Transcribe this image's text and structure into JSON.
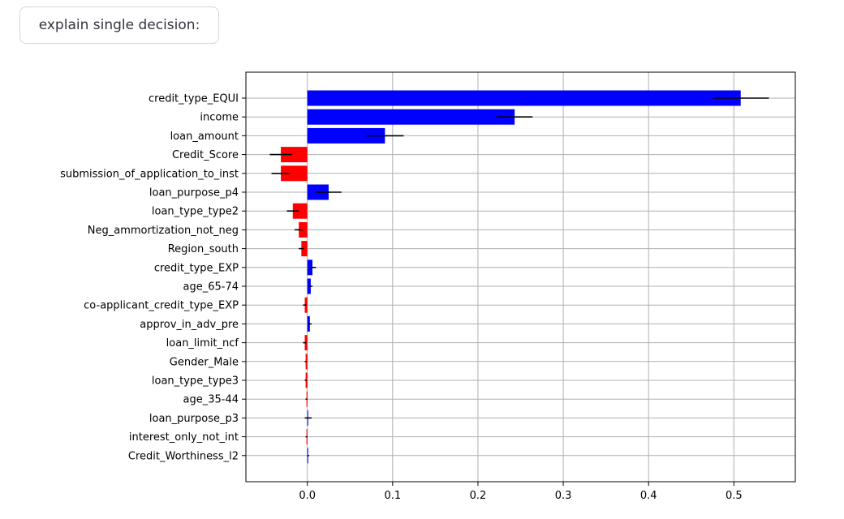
{
  "controls": {
    "explain_label": "explain single decision:"
  },
  "colors": {
    "positive": "#0000ff",
    "negative": "#ff0000",
    "grid": "#b0b0b0",
    "error": "#000000"
  },
  "chart_data": {
    "type": "bar",
    "orientation": "horizontal",
    "title": "",
    "xlabel": "",
    "ylabel": "",
    "xlim": [
      -0.072,
      0.572
    ],
    "xticks": [
      0.0,
      0.1,
      0.2,
      0.3,
      0.4,
      0.5
    ],
    "xtick_labels": [
      "0.0",
      "0.1",
      "0.2",
      "0.3",
      "0.4",
      "0.5"
    ],
    "grid": true,
    "categories": [
      "credit_type_EQUI",
      "income",
      "loan_amount",
      "Credit_Score",
      "submission_of_application_to_inst",
      "loan_purpose_p4",
      "loan_type_type2",
      "Neg_ammortization_not_neg",
      "Region_south",
      "credit_type_EXP",
      "age_65-74",
      "co-applicant_credit_type_EXP",
      "approv_in_adv_pre",
      "loan_limit_ncf",
      "Gender_Male",
      "loan_type_type3",
      "age_35-44",
      "loan_purpose_p3",
      "interest_only_not_int",
      "Credit_Worthiness_l2"
    ],
    "values": [
      0.508,
      0.243,
      0.091,
      -0.031,
      -0.031,
      0.025,
      -0.017,
      -0.01,
      -0.007,
      0.006,
      0.004,
      -0.003,
      0.003,
      -0.003,
      -0.002,
      -0.002,
      -0.001,
      0.001,
      -0.001,
      0.001
    ],
    "errors": [
      0.033,
      0.021,
      0.022,
      0.013,
      0.011,
      0.015,
      0.007,
      0.005,
      0.003,
      0.004,
      0.002,
      0.002,
      0.002,
      0.002,
      0.001,
      0.001,
      0.001,
      0.004,
      0.001,
      0.001
    ]
  }
}
